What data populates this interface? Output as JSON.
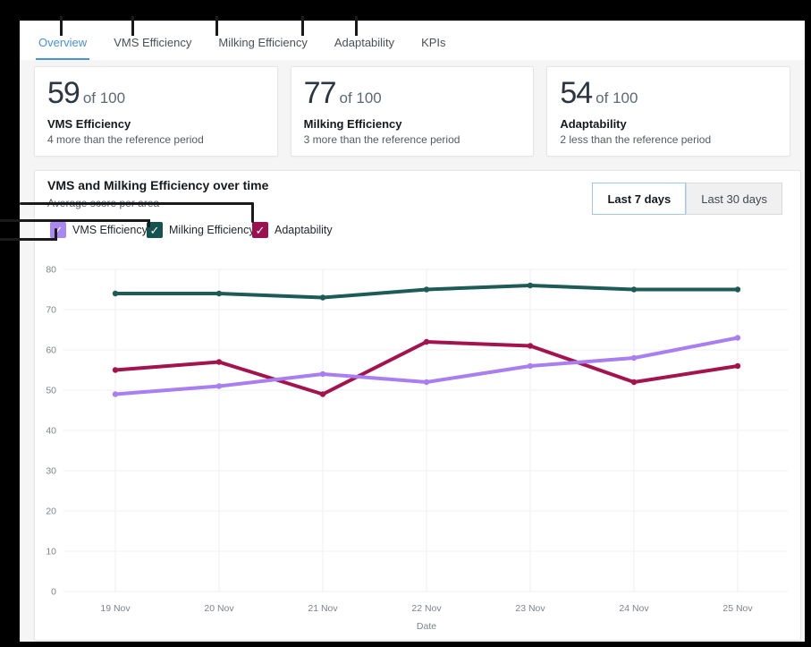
{
  "tabs": {
    "items": [
      {
        "id": "overview",
        "label": "Overview",
        "active": true
      },
      {
        "id": "vms-efficiency",
        "label": "VMS Efficiency",
        "active": false
      },
      {
        "id": "milking-efficiency",
        "label": "Milking Efficiency",
        "active": false
      },
      {
        "id": "adaptability",
        "label": "Adaptability",
        "active": false
      },
      {
        "id": "kpis",
        "label": "KPIs",
        "active": false
      }
    ],
    "active_color": "#4a90da"
  },
  "cards": [
    {
      "id": "vms-efficiency",
      "value": "59",
      "of": "of 100",
      "title": "VMS Efficiency",
      "subtitle": "4 more than the reference period"
    },
    {
      "id": "milking-efficiency",
      "value": "77",
      "of": "of 100",
      "title": "Milking Efficiency",
      "subtitle": "3 more than the reference period"
    },
    {
      "id": "adaptability",
      "value": "54",
      "of": "of 100",
      "title": "Adaptability",
      "subtitle": "2 less than the reference period"
    }
  ],
  "chart_section": {
    "title": "VMS and Milking Efficiency over time",
    "subtitle": "Average score per area",
    "range_buttons": [
      {
        "id": "last-7-days",
        "label": "Last 7 days",
        "active": true
      },
      {
        "id": "last-30-days",
        "label": "Last 30 days",
        "active": false
      }
    ],
    "legend": [
      {
        "id": "vms-efficiency",
        "label": "VMS Efficiency",
        "color": "#a988ef",
        "checked": true
      },
      {
        "id": "milking-efficiency",
        "label": "Milking Efficiency",
        "color": "#16524e",
        "checked": true
      },
      {
        "id": "adaptability",
        "label": "Adaptability",
        "color": "#9b1150",
        "checked": true
      }
    ],
    "checkmark_glyph": "✓"
  },
  "chart_data": {
    "type": "line",
    "x": [
      "19 Nov",
      "20 Nov",
      "21 Nov",
      "22 Nov",
      "23 Nov",
      "24 Nov",
      "25 Nov"
    ],
    "series": [
      {
        "name": "VMS Efficiency",
        "color": "#a87ef0",
        "values": [
          49,
          51,
          54,
          52,
          56,
          58,
          63
        ]
      },
      {
        "name": "Milking Efficiency",
        "color": "#1d5b57",
        "values": [
          74,
          74,
          73,
          75,
          76,
          75,
          75
        ]
      },
      {
        "name": "Adaptability",
        "color": "#a3134e",
        "values": [
          55,
          57,
          49,
          62,
          61,
          52,
          56
        ]
      }
    ],
    "xlabel": "Date",
    "ylim": [
      0,
      80
    ],
    "yticks": [
      0,
      10,
      20,
      30,
      40,
      50,
      60,
      70,
      80
    ],
    "grid": true,
    "gridline_color": "#eef0f2",
    "tick_color": "#7d838a",
    "legend_position": "top-left"
  }
}
